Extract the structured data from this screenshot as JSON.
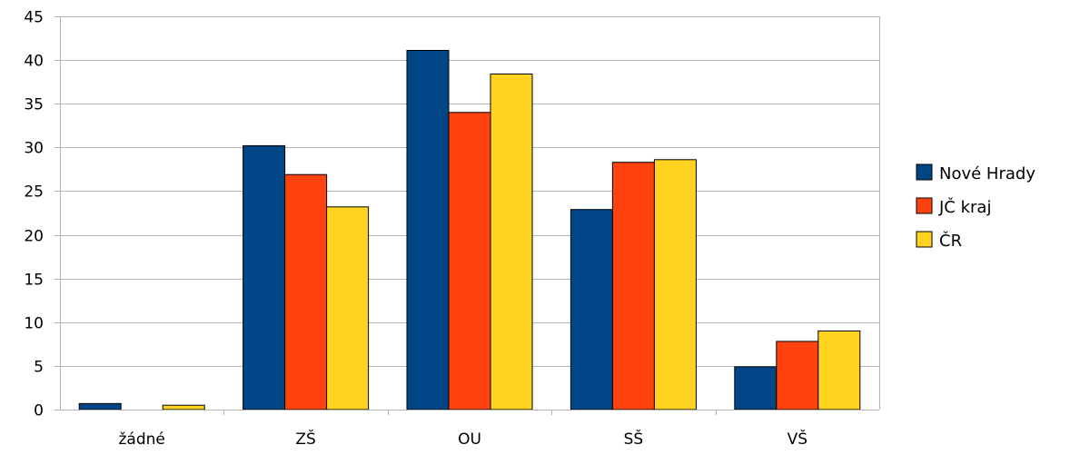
{
  "chart_data": {
    "type": "bar",
    "title": "",
    "xlabel": "",
    "ylabel": "",
    "ylim": [
      0,
      45
    ],
    "yticks": [
      0,
      5,
      10,
      15,
      20,
      25,
      30,
      35,
      40,
      45
    ],
    "grid": true,
    "legend_position": "right",
    "categories": [
      "žádné",
      "ZŠ",
      "OU",
      "SŠ",
      "VŠ"
    ],
    "series": [
      {
        "name": "Nové Hrady",
        "color": "#004586",
        "values": [
          0.7,
          30.2,
          41.1,
          22.9,
          4.9
        ]
      },
      {
        "name": "JČ kraj",
        "color": "#ff420e",
        "values": [
          0.0,
          26.9,
          34.0,
          28.3,
          7.8
        ]
      },
      {
        "name": "ČR",
        "color": "#ffd320",
        "values": [
          0.5,
          23.2,
          38.4,
          28.6,
          9.0
        ]
      }
    ]
  }
}
